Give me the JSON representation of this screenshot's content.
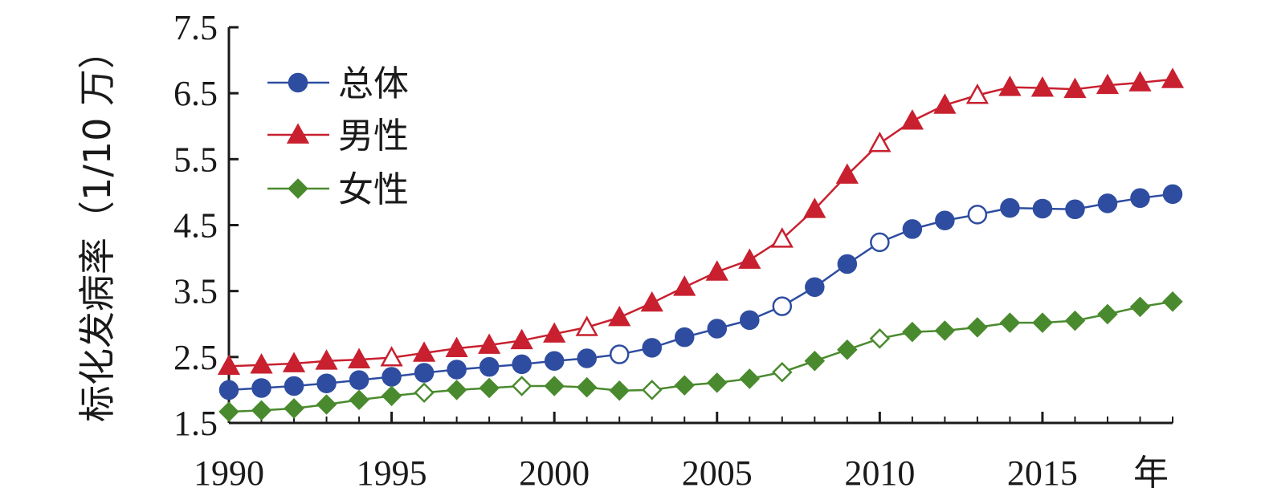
{
  "chart_data": {
    "type": "line",
    "title": "",
    "ylabel": "标化发病率（1/10 万）",
    "xlabel": "年",
    "ylim": [
      1.5,
      7.5
    ],
    "xlim": [
      1990,
      2019
    ],
    "y_ticks": [
      "1.5",
      "2.5",
      "3.5",
      "4.5",
      "5.5",
      "6.5",
      "7.5"
    ],
    "x_ticks": [
      "1990",
      "1995",
      "2000",
      "2005",
      "2010",
      "2015"
    ],
    "grid": false,
    "legend_position": "top-left",
    "x": [
      1990,
      1991,
      1992,
      1993,
      1994,
      1995,
      1996,
      1997,
      1998,
      1999,
      2000,
      2001,
      2002,
      2003,
      2004,
      2005,
      2006,
      2007,
      2008,
      2009,
      2010,
      2011,
      2012,
      2013,
      2014,
      2015,
      2016,
      2017,
      2018,
      2019
    ],
    "series": [
      {
        "name": "总体",
        "color": "#2E4DA0",
        "marker": "circle",
        "values": [
          2.0,
          2.03,
          2.06,
          2.1,
          2.15,
          2.2,
          2.26,
          2.31,
          2.35,
          2.39,
          2.44,
          2.48,
          2.54,
          2.64,
          2.8,
          2.93,
          3.06,
          3.27,
          3.56,
          3.91,
          4.24,
          4.44,
          4.57,
          4.66,
          4.76,
          4.75,
          4.74,
          4.83,
          4.91,
          4.97
        ],
        "hollow": [
          2002,
          2007,
          2010,
          2013
        ]
      },
      {
        "name": "男性",
        "color": "#C8202F",
        "marker": "triangle",
        "values": [
          2.36,
          2.38,
          2.4,
          2.44,
          2.46,
          2.49,
          2.56,
          2.63,
          2.68,
          2.75,
          2.85,
          2.95,
          3.1,
          3.32,
          3.56,
          3.79,
          3.97,
          4.29,
          4.74,
          5.26,
          5.74,
          6.08,
          6.32,
          6.47,
          6.59,
          6.58,
          6.56,
          6.62,
          6.66,
          6.71
        ],
        "hollow": [
          2001,
          1995,
          2007,
          2010,
          2013
        ]
      },
      {
        "name": "女性",
        "color": "#4A8A2E",
        "marker": "diamond",
        "values": [
          1.67,
          1.69,
          1.72,
          1.78,
          1.85,
          1.91,
          1.96,
          2.0,
          2.03,
          2.06,
          2.06,
          2.04,
          1.99,
          2.0,
          2.07,
          2.11,
          2.17,
          2.27,
          2.44,
          2.61,
          2.78,
          2.88,
          2.9,
          2.95,
          3.02,
          3.02,
          3.05,
          3.15,
          3.26,
          3.34
        ],
        "hollow": [
          1996,
          1999,
          2003,
          2007,
          2010
        ]
      }
    ]
  }
}
